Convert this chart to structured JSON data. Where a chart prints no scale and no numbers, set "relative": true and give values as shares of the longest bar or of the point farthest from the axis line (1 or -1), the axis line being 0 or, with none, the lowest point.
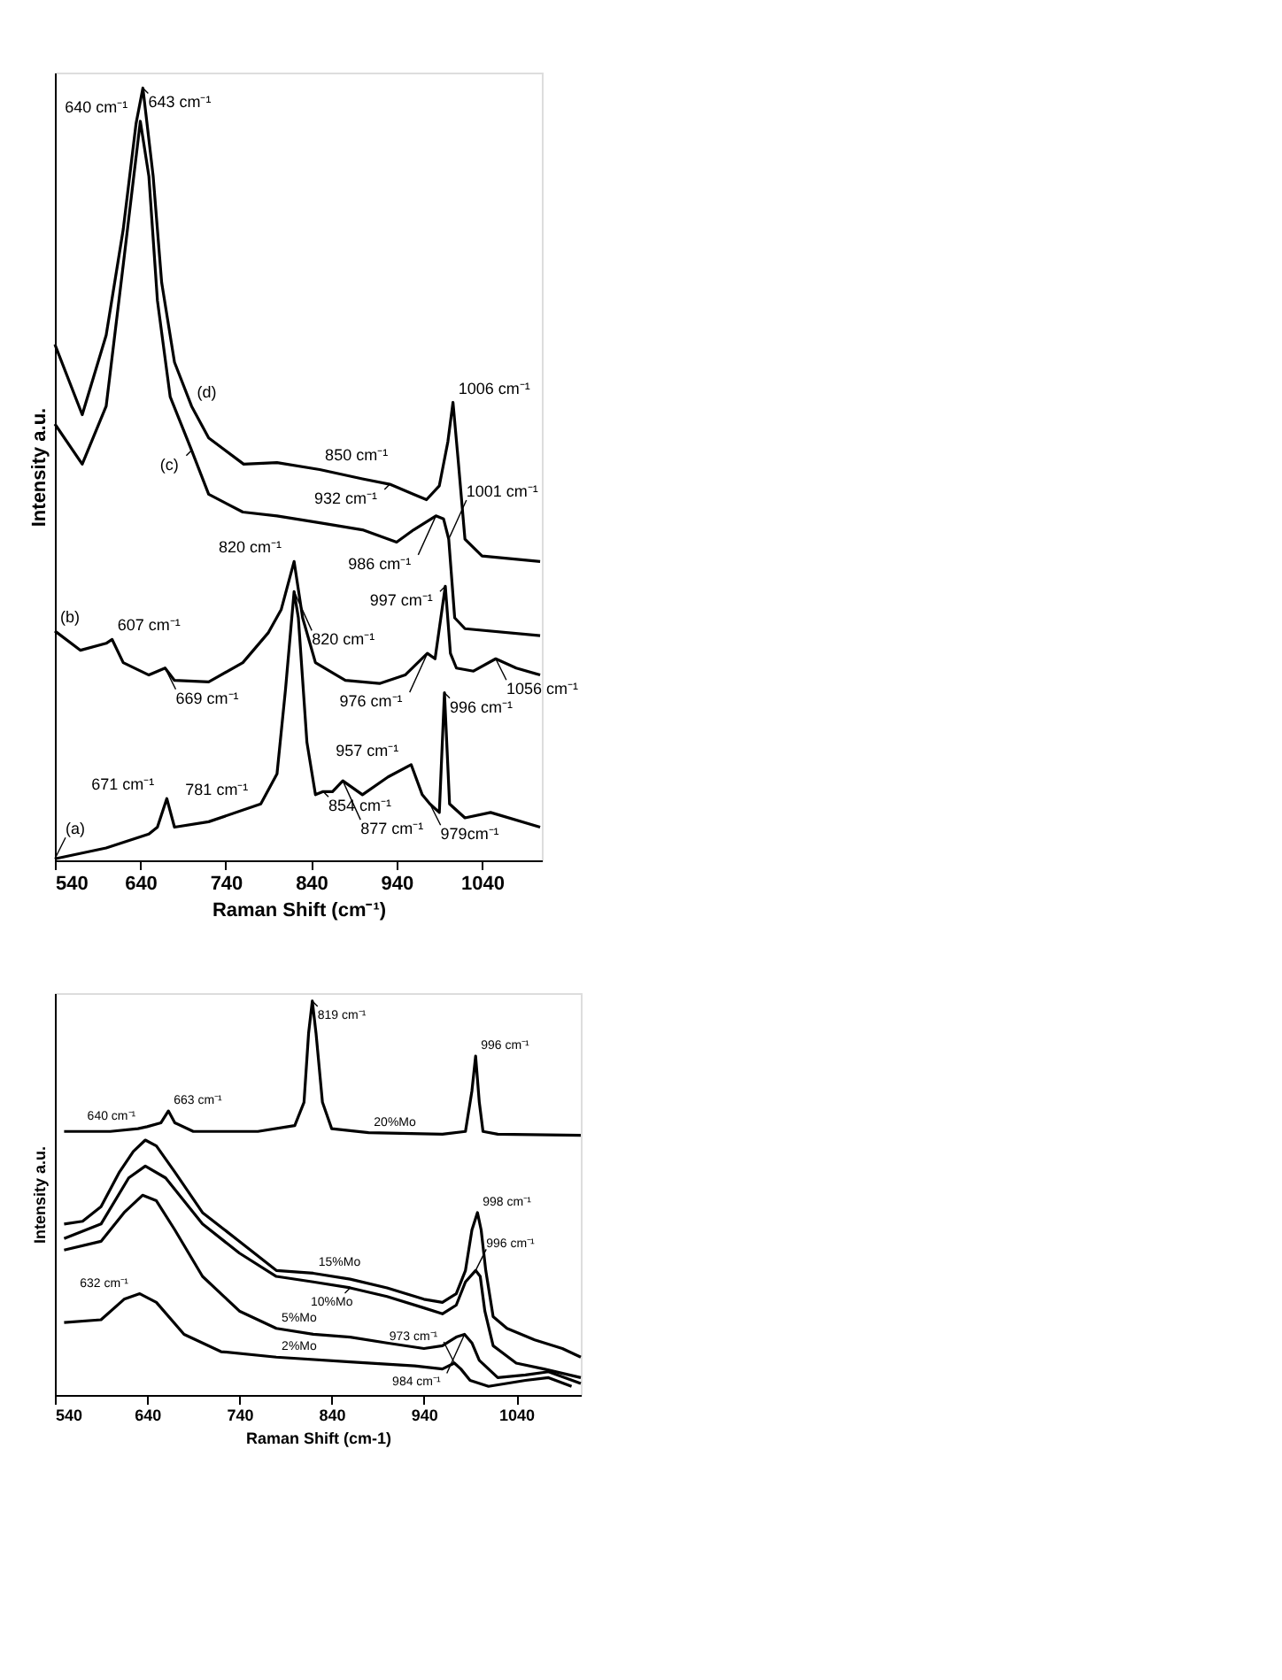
{
  "chart_data": [
    {
      "type": "line",
      "relative": true,
      "xlabel": "Raman Shift (cm⁻¹)",
      "ylabel": "Intensity a.u.",
      "xlim": [
        540,
        1110
      ],
      "xticks": [
        540,
        640,
        740,
        840,
        940,
        1040
      ],
      "grid": false,
      "marker": "none",
      "line_style": "solid",
      "series": [
        {
          "color": "#000000",
          "x": [
            540,
            572,
            600,
            620,
            635,
            643,
            655,
            665,
            680,
            700,
            720,
            761,
            800,
            850,
            900,
            932,
            960,
            975,
            990,
            1000,
            1006,
            1012,
            1020,
            1040,
            1108
          ],
          "values": [
            0.668,
            0.577,
            0.68,
            0.817,
            0.954,
            1.0,
            0.886,
            0.748,
            0.645,
            0.588,
            0.547,
            0.513,
            0.515,
            0.506,
            0.494,
            0.487,
            0.474,
            0.467,
            0.485,
            0.542,
            0.593,
            0.519,
            0.416,
            0.394,
            0.387
          ]
        },
        {
          "color": "#000000",
          "x": [
            540,
            572,
            600,
            620,
            640,
            650,
            660,
            675,
            700,
            720,
            760,
            800,
            850,
            900,
            940,
            960,
            986,
            995,
            1001,
            1008,
            1020,
            1108
          ],
          "values": [
            0.565,
            0.513,
            0.588,
            0.771,
            0.957,
            0.886,
            0.725,
            0.6,
            0.531,
            0.474,
            0.451,
            0.446,
            0.437,
            0.428,
            0.412,
            0.428,
            0.446,
            0.442,
            0.416,
            0.314,
            0.3,
            0.291
          ]
        },
        {
          "color": "#000000",
          "x": [
            540,
            570,
            600,
            607,
            620,
            650,
            669,
            680,
            720,
            760,
            790,
            805,
            820,
            830,
            845,
            880,
            920,
            950,
            976,
            985,
            997,
            1003,
            1010,
            1030,
            1056,
            1080,
            1108
          ],
          "values": [
            0.297,
            0.272,
            0.281,
            0.286,
            0.256,
            0.24,
            0.249,
            0.233,
            0.231,
            0.256,
            0.295,
            0.325,
            0.387,
            0.314,
            0.256,
            0.233,
            0.229,
            0.24,
            0.268,
            0.261,
            0.355,
            0.268,
            0.249,
            0.245,
            0.261,
            0.249,
            0.24
          ]
        },
        {
          "color": "#000000",
          "x": [
            540,
            600,
            650,
            660,
            671,
            680,
            720,
            781,
            800,
            810,
            820,
            825,
            835,
            845,
            854,
            865,
            877,
            900,
            930,
            957,
            970,
            979,
            990,
            996,
            1002,
            1020,
            1050,
            1108
          ],
          "values": [
            0.002,
            0.016,
            0.034,
            0.043,
            0.08,
            0.043,
            0.05,
            0.073,
            0.112,
            0.222,
            0.348,
            0.314,
            0.153,
            0.085,
            0.089,
            0.089,
            0.103,
            0.085,
            0.108,
            0.124,
            0.085,
            0.073,
            0.062,
            0.217,
            0.073,
            0.055,
            0.062,
            0.043
          ]
        }
      ],
      "annotations": [
        {
          "text": "643 cm⁻¹",
          "x": 643,
          "y": 1.0
        },
        {
          "text": "640 cm⁻¹",
          "x": 640,
          "y": 0.957
        },
        {
          "text": "(d)",
          "x": 700,
          "y": 0.588
        },
        {
          "text": "(c)",
          "x": 700,
          "y": 0.531
        },
        {
          "text": "850 cm⁻¹",
          "x": 850,
          "y": 0.506
        },
        {
          "text": "932 cm⁻¹",
          "x": 932,
          "y": 0.487
        },
        {
          "text": "1006 cm⁻¹",
          "x": 1006,
          "y": 0.593
        },
        {
          "text": "986 cm⁻¹",
          "x": 986,
          "y": 0.446
        },
        {
          "text": "1001 cm⁻¹",
          "x": 1001,
          "y": 0.416
        },
        {
          "text": "820 cm⁻¹",
          "x": 820,
          "y": 0.387
        },
        {
          "text": "820 cm⁻¹",
          "x": 820,
          "y": 0.348
        },
        {
          "text": "997 cm⁻¹",
          "x": 997,
          "y": 0.355
        },
        {
          "text": "607 cm⁻¹",
          "x": 607,
          "y": 0.286
        },
        {
          "text": "(b)",
          "x": 540,
          "y": 0.297
        },
        {
          "text": "669 cm⁻¹",
          "x": 669,
          "y": 0.249
        },
        {
          "text": "976 cm⁻¹",
          "x": 976,
          "y": 0.268
        },
        {
          "text": "1056 cm⁻¹",
          "x": 1056,
          "y": 0.261
        },
        {
          "text": "957 cm⁻¹",
          "x": 957,
          "y": 0.124
        },
        {
          "text": "996 cm⁻¹",
          "x": 996,
          "y": 0.217
        },
        {
          "text": "781 cm⁻¹",
          "x": 781,
          "y": 0.073
        },
        {
          "text": "854 cm⁻¹",
          "x": 854,
          "y": 0.089
        },
        {
          "text": "877 cm⁻¹",
          "x": 877,
          "y": 0.103
        },
        {
          "text": "671 cm⁻¹",
          "x": 671,
          "y": 0.08
        },
        {
          "text": "979cm⁻¹",
          "x": 979,
          "y": 0.073
        },
        {
          "text": "(a)",
          "x": 540,
          "y": 0.002
        }
      ]
    },
    {
      "type": "line",
      "relative": true,
      "xlabel": "Raman Shift (cm-1)",
      "ylabel": "Intensity a.u.",
      "xlim": [
        540,
        1110
      ],
      "xticks": [
        540,
        640,
        740,
        840,
        940,
        1040
      ],
      "grid": false,
      "marker": "none",
      "line_style": "solid",
      "series": [
        {
          "color": "#000000",
          "x": [
            550,
            600,
            630,
            640,
            655,
            663,
            670,
            690,
            760,
            800,
            810,
            815,
            819,
            823,
            830,
            840,
            880,
            960,
            985,
            992,
            996,
            1000,
            1004,
            1020,
            1110
          ],
          "values": [
            0.669,
            0.669,
            0.676,
            0.681,
            0.691,
            0.721,
            0.691,
            0.669,
            0.669,
            0.684,
            0.743,
            0.919,
            1.0,
            0.919,
            0.743,
            0.676,
            0.666,
            0.662,
            0.669,
            0.772,
            0.86,
            0.743,
            0.669,
            0.662,
            0.659
          ]
        },
        {
          "color": "#000000",
          "x": [
            550,
            570,
            590,
            610,
            625,
            638,
            650,
            670,
            700,
            740,
            780,
            820,
            860,
            900,
            940,
            960,
            975,
            985,
            992,
            998,
            1002,
            1007,
            1015,
            1030,
            1060,
            1090,
            1110
          ],
          "values": [
            0.434,
            0.441,
            0.478,
            0.566,
            0.618,
            0.647,
            0.632,
            0.566,
            0.463,
            0.39,
            0.316,
            0.309,
            0.294,
            0.272,
            0.243,
            0.235,
            0.257,
            0.316,
            0.419,
            0.463,
            0.419,
            0.316,
            0.199,
            0.169,
            0.14,
            0.118,
            0.096
          ]
        },
        {
          "color": "#000000",
          "x": [
            550,
            590,
            620,
            638,
            660,
            700,
            740,
            780,
            820,
            860,
            900,
            940,
            960,
            975,
            985,
            996,
            1001,
            1006,
            1015,
            1040,
            1070,
            1110
          ],
          "values": [
            0.397,
            0.434,
            0.551,
            0.581,
            0.551,
            0.434,
            0.36,
            0.301,
            0.287,
            0.272,
            0.25,
            0.221,
            0.206,
            0.228,
            0.287,
            0.316,
            0.301,
            0.213,
            0.125,
            0.081,
            0.066,
            0.044
          ]
        },
        {
          "color": "#000000",
          "x": [
            550,
            590,
            615,
            635,
            650,
            670,
            700,
            740,
            780,
            820,
            860,
            900,
            940,
            960,
            975,
            984,
            992,
            1000,
            1020,
            1050,
            1075,
            1110
          ],
          "values": [
            0.368,
            0.39,
            0.463,
            0.507,
            0.493,
            0.419,
            0.301,
            0.213,
            0.169,
            0.154,
            0.147,
            0.132,
            0.118,
            0.125,
            0.147,
            0.154,
            0.132,
            0.088,
            0.044,
            0.051,
            0.059,
            0.029
          ]
        },
        {
          "color": "#000000",
          "x": [
            550,
            590,
            615,
            632,
            650,
            680,
            720,
            780,
            860,
            930,
            960,
            973,
            980,
            990,
            1010,
            1050,
            1075,
            1100
          ],
          "values": [
            0.184,
            0.191,
            0.243,
            0.257,
            0.235,
            0.154,
            0.11,
            0.096,
            0.084,
            0.074,
            0.066,
            0.081,
            0.066,
            0.037,
            0.022,
            0.037,
            0.044,
            0.022
          ]
        }
      ],
      "annotations": [
        {
          "text": "819 cm⁻¹",
          "x": 819,
          "y": 1.0
        },
        {
          "text": "996 cm⁻¹",
          "x": 996,
          "y": 0.86
        },
        {
          "text": "640 cm⁻¹",
          "x": 640,
          "y": 0.681
        },
        {
          "text": "663 cm⁻¹",
          "x": 663,
          "y": 0.721
        },
        {
          "text": "20%Mo",
          "x": 880,
          "y": 0.666
        },
        {
          "text": "998 cm⁻¹",
          "x": 998,
          "y": 0.463
        },
        {
          "text": "996 cm⁻¹",
          "x": 996,
          "y": 0.316
        },
        {
          "text": "15%Mo",
          "x": 820,
          "y": 0.309
        },
        {
          "text": "10%Mo",
          "x": 860,
          "y": 0.272
        },
        {
          "text": "632 cm⁻¹",
          "x": 632,
          "y": 0.257
        },
        {
          "text": "5%Mo",
          "x": 780,
          "y": 0.169
        },
        {
          "text": "2%Mo",
          "x": 780,
          "y": 0.096
        },
        {
          "text": "984 cm⁻¹",
          "x": 984,
          "y": 0.154
        },
        {
          "text": "973 cm⁻¹",
          "x": 973,
          "y": 0.081
        }
      ]
    }
  ]
}
